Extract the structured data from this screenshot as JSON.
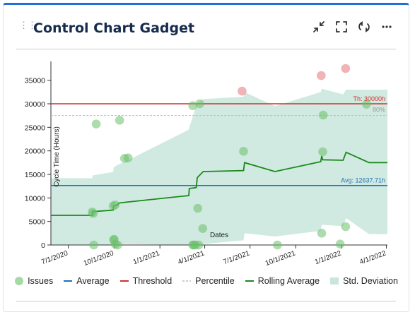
{
  "header": {
    "title": "Control Chart Gadget",
    "icons": [
      "collapse-icon",
      "fullscreen-icon",
      "refresh-icon",
      "more-icon"
    ]
  },
  "chart_data": {
    "type": "scatter",
    "ylabel": "Cycle Time (Hours)",
    "xlabel": "Dates",
    "ylim": [
      0,
      37500
    ],
    "yticks": [
      0,
      5000,
      10000,
      15000,
      20000,
      25000,
      30000,
      35000
    ],
    "ytick_labels": [
      "0",
      "5000",
      "10000",
      "15000",
      "20000",
      "25000",
      "30000",
      "35000"
    ],
    "xticks": [
      "2020-07-01",
      "2020-10-01",
      "2021-01-01",
      "2021-04-01",
      "2021-07-01",
      "2021-10-01",
      "2022-01-01",
      "2022-04-01"
    ],
    "xtick_labels": [
      "7/1/2020",
      "10/1/2020",
      "1/1/2021",
      "4/1/2021",
      "7/1/2021",
      "10/1/2021",
      "1/1/2022",
      "4/1/2022"
    ],
    "xlim": [
      "2020-05-27",
      "2022-04-03"
    ],
    "threshold": {
      "value": 30000,
      "label": "Th: 30000h",
      "color": "#d32f2f"
    },
    "average": {
      "value": 12637.71,
      "label": "Avg: 12637.71h",
      "color": "#1f6fb4"
    },
    "percentile": {
      "value": 27500,
      "label": "80%",
      "color": "#bbbbbb"
    },
    "issues": [
      {
        "x": "2020-08-18",
        "y": 7000,
        "over": false
      },
      {
        "x": "2020-08-20",
        "y": 6700,
        "over": false
      },
      {
        "x": "2020-08-21",
        "y": 0,
        "over": false
      },
      {
        "x": "2020-08-26",
        "y": 25700,
        "over": false
      },
      {
        "x": "2020-09-29",
        "y": 8300,
        "over": false
      },
      {
        "x": "2020-09-30",
        "y": 1100,
        "over": false
      },
      {
        "x": "2020-10-01",
        "y": 1200,
        "over": false
      },
      {
        "x": "2020-10-03",
        "y": 8500,
        "over": false
      },
      {
        "x": "2020-10-03",
        "y": 200,
        "over": false
      },
      {
        "x": "2020-10-08",
        "y": 0,
        "over": false
      },
      {
        "x": "2020-10-12",
        "y": 26500,
        "over": false
      },
      {
        "x": "2020-10-22",
        "y": 18400,
        "over": false
      },
      {
        "x": "2020-10-29",
        "y": 18500,
        "over": false
      },
      {
        "x": "2021-03-08",
        "y": 29600,
        "over": false
      },
      {
        "x": "2021-03-08",
        "y": 0,
        "over": false
      },
      {
        "x": "2021-03-10",
        "y": 0,
        "over": false
      },
      {
        "x": "2021-03-13",
        "y": 0,
        "over": false
      },
      {
        "x": "2021-03-18",
        "y": 7800,
        "over": false
      },
      {
        "x": "2021-03-20",
        "y": 0,
        "over": false
      },
      {
        "x": "2021-03-22",
        "y": 30000,
        "over": false
      },
      {
        "x": "2021-03-28",
        "y": 3500,
        "over": false
      },
      {
        "x": "2021-06-15",
        "y": 32700,
        "over": true
      },
      {
        "x": "2021-06-18",
        "y": 19900,
        "over": false
      },
      {
        "x": "2021-08-25",
        "y": 0,
        "over": false
      },
      {
        "x": "2021-11-21",
        "y": 36000,
        "over": true
      },
      {
        "x": "2021-11-22",
        "y": 2500,
        "over": false
      },
      {
        "x": "2021-11-24",
        "y": 19800,
        "over": false
      },
      {
        "x": "2021-11-25",
        "y": 27600,
        "over": false
      },
      {
        "x": "2021-12-29",
        "y": 200,
        "over": false
      },
      {
        "x": "2022-01-09",
        "y": 37500,
        "over": true
      },
      {
        "x": "2022-01-09",
        "y": 3900,
        "over": false
      },
      {
        "x": "2022-02-20",
        "y": 29900,
        "over": false
      }
    ],
    "rolling_average": [
      {
        "x": "2020-05-27",
        "y": 6300
      },
      {
        "x": "2020-08-18",
        "y": 6300
      },
      {
        "x": "2020-08-19",
        "y": 7100
      },
      {
        "x": "2020-09-29",
        "y": 7400
      },
      {
        "x": "2020-09-30",
        "y": 8300
      },
      {
        "x": "2020-10-08",
        "y": 8500
      },
      {
        "x": "2020-10-10",
        "y": 8900
      },
      {
        "x": "2020-10-25",
        "y": 9100
      },
      {
        "x": "2021-02-28",
        "y": 10500
      },
      {
        "x": "2021-03-01",
        "y": 12000
      },
      {
        "x": "2021-03-15",
        "y": 12200
      },
      {
        "x": "2021-03-17",
        "y": 14300
      },
      {
        "x": "2021-03-29",
        "y": 15600
      },
      {
        "x": "2021-06-18",
        "y": 15800
      },
      {
        "x": "2021-06-20",
        "y": 17500
      },
      {
        "x": "2021-08-20",
        "y": 15600
      },
      {
        "x": "2021-11-20",
        "y": 17700
      },
      {
        "x": "2021-11-22",
        "y": 18900
      },
      {
        "x": "2021-11-24",
        "y": 18100
      },
      {
        "x": "2022-01-04",
        "y": 18000
      },
      {
        "x": "2022-01-10",
        "y": 19700
      },
      {
        "x": "2022-02-25",
        "y": 17500
      },
      {
        "x": "2022-04-03",
        "y": 17500
      }
    ],
    "std_deviation": {
      "upper": [
        {
          "x": "2020-05-27",
          "y": 14200
        },
        {
          "x": "2020-08-18",
          "y": 14200
        },
        {
          "x": "2020-08-19",
          "y": 14800
        },
        {
          "x": "2020-09-29",
          "y": 15500
        },
        {
          "x": "2020-09-30",
          "y": 16500
        },
        {
          "x": "2020-10-08",
          "y": 17000
        },
        {
          "x": "2020-10-25",
          "y": 17800
        },
        {
          "x": "2021-02-28",
          "y": 24500
        },
        {
          "x": "2021-03-01",
          "y": 25000
        },
        {
          "x": "2021-03-12",
          "y": 28500
        },
        {
          "x": "2021-03-15",
          "y": 30000
        },
        {
          "x": "2021-03-29",
          "y": 31000
        },
        {
          "x": "2021-06-18",
          "y": 31500
        },
        {
          "x": "2021-06-20",
          "y": 32500
        },
        {
          "x": "2021-08-20",
          "y": 29500
        },
        {
          "x": "2021-11-20",
          "y": 32500
        },
        {
          "x": "2021-11-22",
          "y": 33200
        },
        {
          "x": "2022-01-04",
          "y": 32000
        },
        {
          "x": "2022-01-10",
          "y": 33000
        },
        {
          "x": "2022-04-03",
          "y": 33000
        }
      ],
      "lower": [
        {
          "x": "2020-05-27",
          "y": 0
        },
        {
          "x": "2020-08-18",
          "y": 0
        },
        {
          "x": "2020-09-30",
          "y": 0
        },
        {
          "x": "2020-10-25",
          "y": 200
        },
        {
          "x": "2021-02-28",
          "y": 0
        },
        {
          "x": "2021-03-15",
          "y": 0
        },
        {
          "x": "2021-03-29",
          "y": 200
        },
        {
          "x": "2021-06-18",
          "y": 1000
        },
        {
          "x": "2021-06-20",
          "y": 2500
        },
        {
          "x": "2021-08-20",
          "y": 1800
        },
        {
          "x": "2021-11-20",
          "y": 3000
        },
        {
          "x": "2021-11-22",
          "y": 4300
        },
        {
          "x": "2022-01-04",
          "y": 4000
        },
        {
          "x": "2022-01-10",
          "y": 5700
        },
        {
          "x": "2022-02-25",
          "y": 2300
        },
        {
          "x": "2022-04-03",
          "y": 2300
        }
      ]
    },
    "legend": {
      "placement": "bottom",
      "items": [
        {
          "key": "issues",
          "label": "Issues",
          "color": "#8fcf8f"
        },
        {
          "key": "average",
          "label": "Average",
          "color": "#1f6fb4"
        },
        {
          "key": "threshold",
          "label": "Threshold",
          "color": "#d32f2f"
        },
        {
          "key": "percentile",
          "label": "Percentile",
          "color": "#bbbbbb"
        },
        {
          "key": "rolling",
          "label": "Rolling Average",
          "color": "#1a8a1a"
        },
        {
          "key": "std",
          "label": "Std. Deviation",
          "color": "#c8e6dc"
        }
      ]
    }
  }
}
